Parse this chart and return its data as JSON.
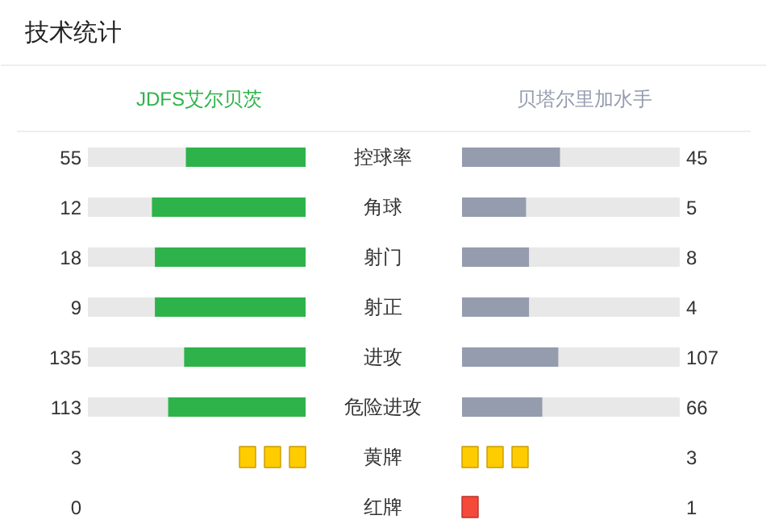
{
  "chart_data": [
    {
      "type": "other",
      "title": "技术统计",
      "categories": [
        "控球率",
        "角球",
        "射门",
        "射正",
        "进攻",
        "危险进攻"
      ],
      "series": [
        {
          "name": "JDFS艾尔贝茨",
          "color": "#2eb34a",
          "values": [
            55,
            12,
            18,
            9,
            135,
            113
          ]
        },
        {
          "name": "贝塔尔里加水手",
          "color": "#959cae",
          "values": [
            45,
            5,
            8,
            4,
            107,
            66
          ]
        }
      ],
      "data_labels": true
    },
    {
      "type": "other",
      "categories": [
        "黄牌",
        "红牌"
      ],
      "colors": [
        "#ffcc00",
        "#f5493a"
      ],
      "series": [
        {
          "values": [
            3,
            0
          ]
        },
        {
          "values": [
            3,
            1
          ]
        }
      ],
      "data_labels": true
    }
  ]
}
